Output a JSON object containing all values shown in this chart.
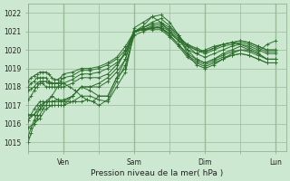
{
  "xlabel": "Pression niveau de la mer( hPa )",
  "bg_color": "#cce8d0",
  "grid_color": "#99bb99",
  "line_color": "#2d6e2d",
  "ylim": [
    1014.5,
    1022.5
  ],
  "yticks": [
    1015,
    1016,
    1017,
    1018,
    1019,
    1020,
    1021,
    1022
  ],
  "xtick_labels": [
    "",
    "Ven",
    "",
    "Sam",
    "",
    "Dim",
    "",
    "Lun"
  ],
  "xtick_positions": [
    0,
    24,
    48,
    72,
    96,
    120,
    144,
    168
  ],
  "xlim": [
    0,
    175
  ],
  "day_lines": [
    24,
    72,
    120,
    168
  ],
  "series": [
    {
      "x": [
        0,
        2,
        4,
        6,
        8,
        10,
        12,
        14,
        16,
        18,
        20,
        22,
        24,
        30,
        36,
        42,
        48,
        54,
        60,
        66,
        72,
        78,
        84,
        90,
        96,
        102,
        108,
        114,
        120,
        126,
        132,
        138,
        144,
        150,
        156,
        162,
        168
      ],
      "y": [
        1015.3,
        1015.8,
        1016.2,
        1016.5,
        1016.8,
        1017.0,
        1017.0,
        1017.0,
        1017.0,
        1017.0,
        1017.0,
        1017.0,
        1017.0,
        1017.5,
        1018.0,
        1018.0,
        1018.0,
        1018.3,
        1018.8,
        1019.5,
        1021.0,
        1021.3,
        1021.8,
        1021.9,
        1021.5,
        1020.8,
        1019.8,
        1019.2,
        1019.0,
        1019.2,
        1019.5,
        1019.8,
        1020.0,
        1020.0,
        1019.8,
        1019.5,
        1019.5
      ]
    },
    {
      "x": [
        0,
        2,
        4,
        6,
        8,
        10,
        12,
        14,
        16,
        18,
        20,
        22,
        24,
        30,
        36,
        42,
        48,
        54,
        60,
        66,
        72,
        78,
        84,
        90,
        96,
        102,
        108,
        114,
        120,
        126,
        132,
        138,
        144,
        150,
        156,
        162,
        168
      ],
      "y": [
        1016.2,
        1016.5,
        1016.8,
        1017.0,
        1017.2,
        1017.2,
        1017.2,
        1017.2,
        1017.2,
        1017.2,
        1017.2,
        1017.2,
        1017.2,
        1017.5,
        1018.0,
        1018.0,
        1018.2,
        1018.5,
        1019.0,
        1020.0,
        1021.0,
        1021.2,
        1021.5,
        1021.7,
        1021.3,
        1020.8,
        1020.0,
        1019.5,
        1019.3,
        1019.5,
        1019.8,
        1020.0,
        1020.2,
        1020.0,
        1019.8,
        1019.5,
        1019.5
      ]
    },
    {
      "x": [
        0,
        2,
        4,
        6,
        8,
        10,
        12,
        14,
        16,
        18,
        20,
        22,
        24,
        30,
        36,
        42,
        48,
        54,
        60,
        66,
        72,
        78,
        84,
        90,
        96,
        102,
        108,
        114,
        120,
        126,
        132,
        138,
        144,
        150,
        156,
        162,
        168
      ],
      "y": [
        1017.3,
        1017.5,
        1017.8,
        1018.0,
        1018.2,
        1018.2,
        1018.0,
        1018.0,
        1018.0,
        1018.0,
        1018.0,
        1018.0,
        1018.0,
        1018.2,
        1018.5,
        1018.5,
        1018.5,
        1018.7,
        1019.2,
        1019.8,
        1021.0,
        1021.2,
        1021.4,
        1021.5,
        1021.2,
        1020.8,
        1020.2,
        1019.8,
        1019.6,
        1019.8,
        1020.0,
        1020.2,
        1020.3,
        1020.2,
        1020.0,
        1019.8,
        1019.8
      ]
    },
    {
      "x": [
        0,
        2,
        4,
        6,
        8,
        10,
        12,
        14,
        16,
        18,
        20,
        22,
        24,
        30,
        36,
        42,
        48,
        54,
        60,
        66,
        72,
        78,
        84,
        90,
        96,
        102,
        108,
        114,
        120,
        126,
        132,
        138,
        144,
        150,
        156,
        162,
        168
      ],
      "y": [
        1017.8,
        1017.9,
        1018.0,
        1018.2,
        1018.3,
        1018.3,
        1018.3,
        1018.2,
        1018.2,
        1018.2,
        1018.2,
        1018.2,
        1018.2,
        1018.4,
        1018.7,
        1018.7,
        1018.8,
        1019.0,
        1019.3,
        1019.8,
        1021.0,
        1021.1,
        1021.3,
        1021.4,
        1021.1,
        1020.7,
        1020.3,
        1020.0,
        1019.8,
        1020.0,
        1020.2,
        1020.3,
        1020.4,
        1020.3,
        1020.1,
        1019.9,
        1019.9
      ]
    },
    {
      "x": [
        0,
        2,
        4,
        6,
        8,
        10,
        12,
        14,
        16,
        18,
        20,
        22,
        24,
        30,
        36,
        42,
        48,
        54,
        60,
        66,
        72,
        78,
        84,
        90,
        96,
        102,
        108,
        114,
        120,
        126,
        132,
        138,
        144,
        150,
        156,
        162,
        168
      ],
      "y": [
        1018.0,
        1018.2,
        1018.3,
        1018.5,
        1018.5,
        1018.5,
        1018.5,
        1018.3,
        1018.2,
        1018.2,
        1018.2,
        1018.3,
        1018.5,
        1018.6,
        1018.9,
        1018.9,
        1019.0,
        1019.2,
        1019.5,
        1020.0,
        1021.0,
        1021.1,
        1021.2,
        1021.3,
        1021.0,
        1020.6,
        1020.3,
        1020.1,
        1019.9,
        1020.1,
        1020.3,
        1020.4,
        1020.5,
        1020.4,
        1020.2,
        1020.0,
        1020.0
      ]
    },
    {
      "x": [
        0,
        2,
        4,
        6,
        8,
        10,
        12,
        14,
        16,
        18,
        20,
        22,
        24,
        30,
        36,
        42,
        48,
        54,
        60,
        66,
        72,
        78,
        84,
        90,
        96,
        102,
        108,
        114,
        120,
        126,
        132,
        138,
        144,
        150,
        156,
        162,
        168
      ],
      "y": [
        1018.3,
        1018.5,
        1018.6,
        1018.7,
        1018.8,
        1018.8,
        1018.8,
        1018.7,
        1018.5,
        1018.4,
        1018.4,
        1018.5,
        1018.7,
        1018.8,
        1019.0,
        1019.0,
        1019.1,
        1019.3,
        1019.6,
        1020.2,
        1021.0,
        1021.1,
        1021.2,
        1021.2,
        1020.9,
        1020.5,
        1020.2,
        1020.0,
        1019.9,
        1020.1,
        1020.3,
        1020.4,
        1020.5,
        1020.4,
        1020.2,
        1020.0,
        1020.0
      ]
    },
    {
      "x": [
        0,
        4,
        8,
        12,
        16,
        20,
        24,
        30,
        36,
        42,
        48,
        54,
        60,
        66,
        72,
        78,
        84,
        90,
        96,
        102,
        108,
        114,
        120,
        126,
        132,
        138,
        144,
        150,
        156,
        162,
        168
      ],
      "y": [
        1016.2,
        1016.5,
        1017.0,
        1017.2,
        1017.2,
        1017.3,
        1017.3,
        1017.5,
        1018.0,
        1017.8,
        1017.5,
        1017.5,
        1018.5,
        1019.0,
        1021.0,
        1021.1,
        1021.2,
        1021.2,
        1020.8,
        1020.3,
        1019.8,
        1019.5,
        1019.3,
        1019.5,
        1019.7,
        1019.9,
        1020.0,
        1019.9,
        1019.7,
        1019.5,
        1019.5
      ]
    },
    {
      "x": [
        0,
        4,
        8,
        12,
        16,
        20,
        24,
        30,
        36,
        42,
        48,
        54,
        60,
        66,
        72,
        78,
        84,
        90,
        96,
        102,
        108,
        114,
        120,
        126,
        132,
        138,
        144,
        150,
        156,
        162,
        168
      ],
      "y": [
        1015.8,
        1016.0,
        1016.3,
        1016.8,
        1017.0,
        1017.0,
        1017.0,
        1017.2,
        1017.5,
        1017.5,
        1017.3,
        1017.2,
        1018.0,
        1018.8,
        1021.0,
        1021.1,
        1021.1,
        1021.1,
        1020.7,
        1020.2,
        1019.6,
        1019.3,
        1019.1,
        1019.3,
        1019.5,
        1019.7,
        1019.8,
        1019.7,
        1019.5,
        1019.3,
        1019.3
      ]
    },
    {
      "x": [
        0,
        4,
        8,
        12,
        16,
        20,
        24,
        28,
        32,
        36,
        40,
        44,
        48,
        54,
        60,
        66,
        72,
        78,
        84,
        90,
        96,
        102,
        108,
        114,
        120,
        126,
        132,
        138,
        144,
        150,
        156,
        162,
        168
      ],
      "y": [
        1016.5,
        1016.5,
        1016.8,
        1017.2,
        1017.5,
        1017.3,
        1017.2,
        1017.2,
        1017.2,
        1017.2,
        1017.3,
        1017.2,
        1017.0,
        1017.3,
        1018.3,
        1019.2,
        1020.8,
        1021.0,
        1021.2,
        1021.2,
        1020.8,
        1020.3,
        1019.7,
        1019.4,
        1019.2,
        1019.4,
        1019.6,
        1019.7,
        1019.8,
        1019.7,
        1019.5,
        1019.3,
        1019.3
      ]
    },
    {
      "x": [
        0,
        2,
        4,
        6,
        8,
        10,
        12,
        16,
        20,
        24,
        28,
        32,
        36,
        40,
        44,
        48,
        54,
        60,
        66,
        72,
        78,
        84,
        90,
        96,
        102,
        108,
        114,
        120,
        126,
        132,
        138,
        144,
        150,
        156,
        162,
        168
      ],
      "y": [
        1015.0,
        1015.5,
        1016.0,
        1016.3,
        1016.5,
        1016.8,
        1017.0,
        1017.5,
        1018.0,
        1018.2,
        1018.0,
        1017.8,
        1017.5,
        1017.3,
        1017.2,
        1017.5,
        1017.5,
        1018.5,
        1019.5,
        1021.2,
        1021.5,
        1021.8,
        1021.5,
        1021.0,
        1020.5,
        1020.0,
        1019.8,
        1020.0,
        1020.2,
        1020.3,
        1020.4,
        1020.3,
        1020.1,
        1019.9,
        1020.3,
        1020.5
      ]
    }
  ]
}
